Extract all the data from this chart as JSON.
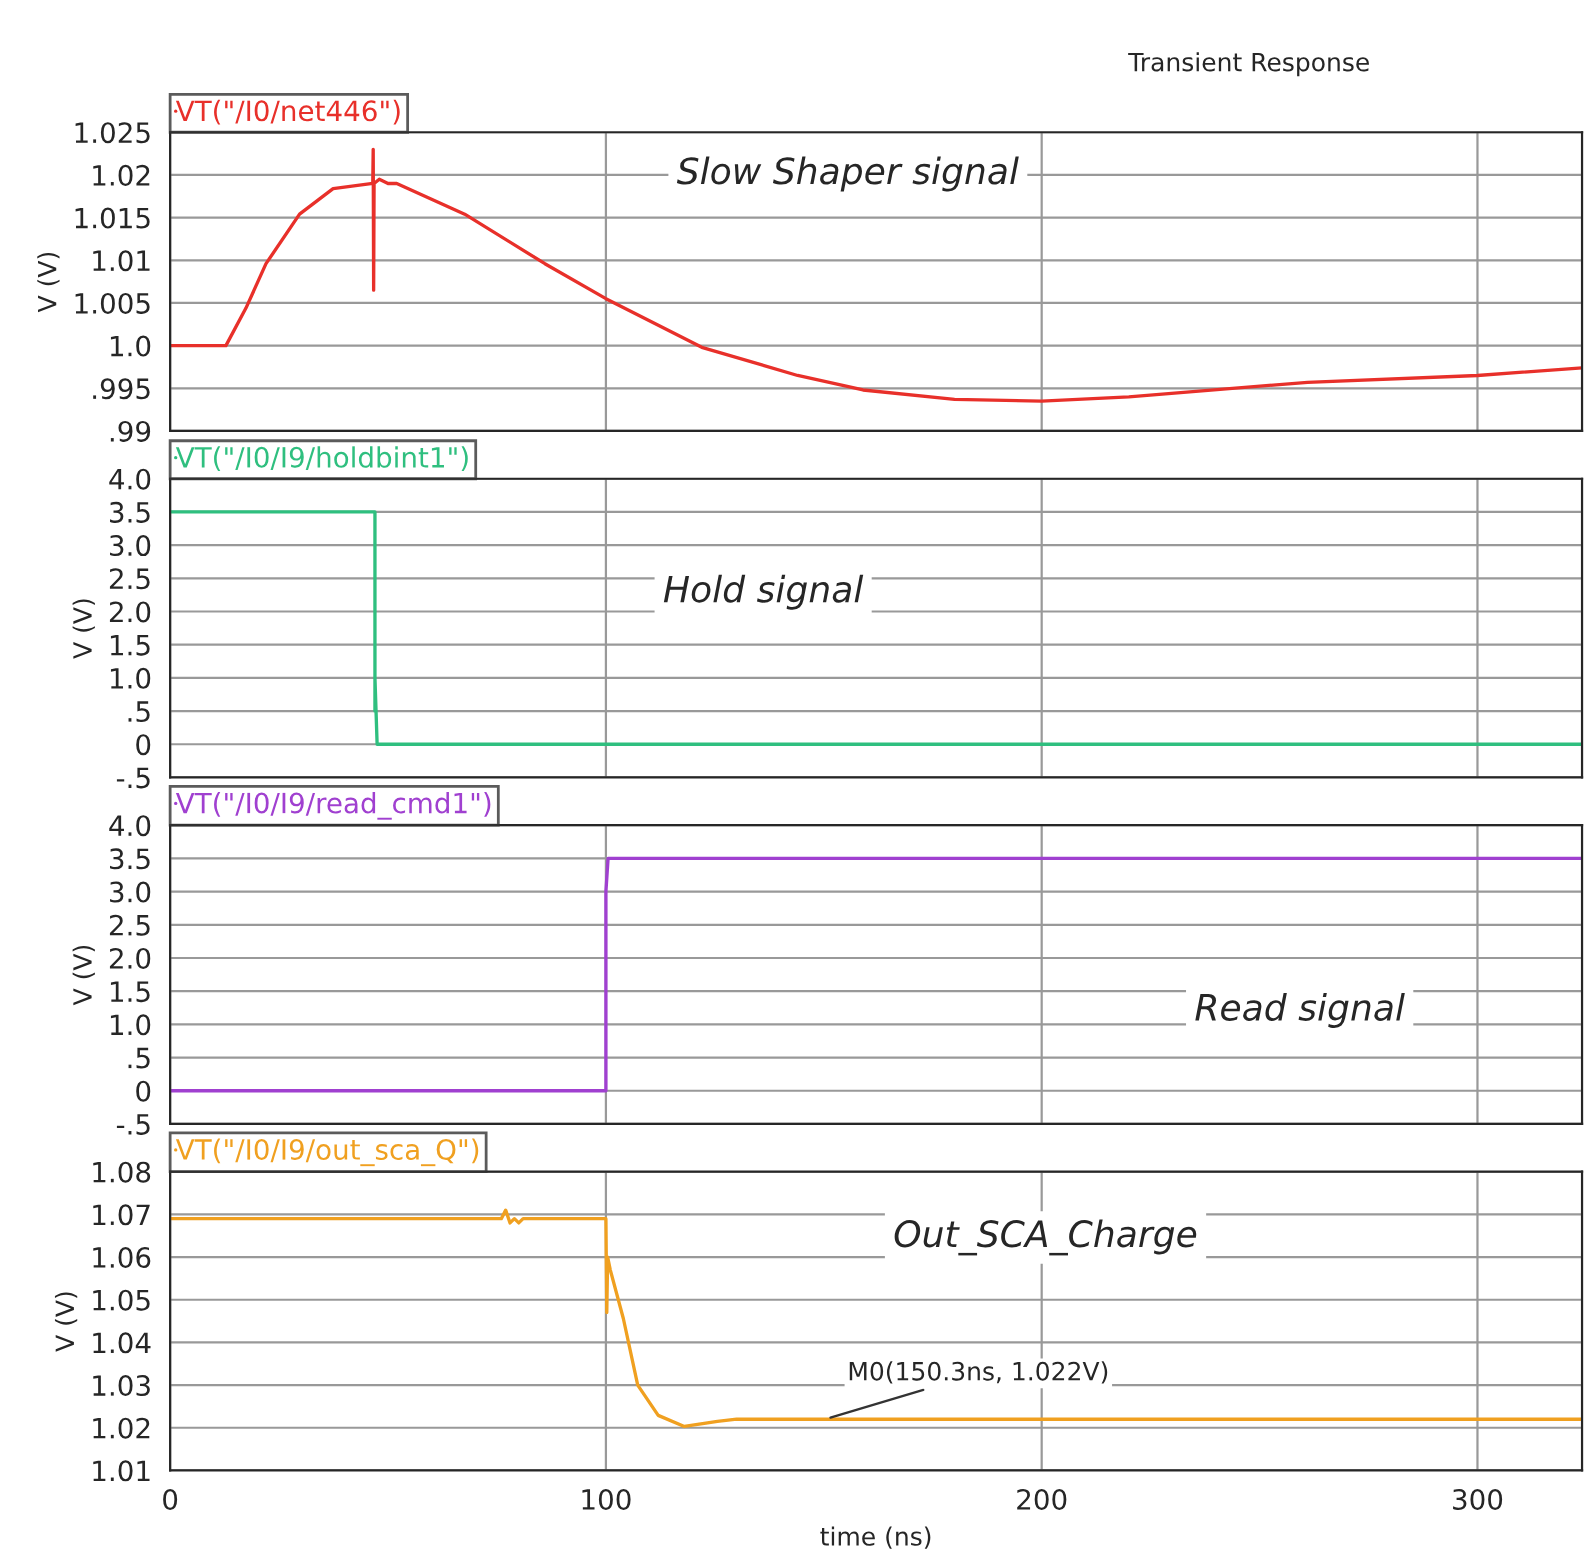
{
  "chart_data": [
    {
      "type": "line",
      "title": "Transient Response",
      "ylabel": "V (V)",
      "xlim": [
        0,
        324
      ],
      "ylim": [
        0.99,
        1.025
      ],
      "xticks": [
        0,
        100,
        200,
        300
      ],
      "yticks": [
        {
          "value": 0.99,
          "label": ".99"
        },
        {
          "value": 0.995,
          "label": ".995"
        },
        {
          "value": 1.0,
          "label": "1.0"
        },
        1.005,
        1.01,
        1.015,
        1.02,
        1.025
      ],
      "tick_labels": "y",
      "grid": true,
      "legend": "top left",
      "marker": "none",
      "line_style": "solid",
      "annotations": [
        "Slow Shaper signal"
      ],
      "series": [
        {
          "name": "VT(\"/I0/net446\")",
          "color": "#e8302a",
          "x": [
            0,
            12.8,
            17.4,
            22,
            29.7,
            37.4,
            46.5,
            46.6,
            46.7,
            46.8,
            48,
            50,
            52,
            67.6,
            86,
            100,
            122,
            144,
            159,
            180,
            200,
            220,
            261,
            300,
            324
          ],
          "values": [
            1.0,
            1.0,
            1.0044,
            1.0096,
            1.0154,
            1.0184,
            1.019,
            1.023,
            1.0065,
            1.019,
            1.0195,
            1.019,
            1.019,
            1.0154,
            1.0096,
            1.0055,
            0.9998,
            0.9965,
            0.9948,
            0.9937,
            0.9935,
            0.994,
            0.9957,
            0.9965,
            0.9974
          ]
        }
      ]
    },
    {
      "type": "line",
      "ylabel": "V (V)",
      "xlim": [
        0,
        324
      ],
      "ylim": [
        -0.5,
        4.0
      ],
      "xticks": [
        0,
        100,
        200,
        300
      ],
      "yticks": [
        {
          "value": -0.5,
          "label": "-.5"
        },
        0,
        {
          "value": 0.5,
          "label": ".5"
        },
        {
          "value": 1.0,
          "label": "1.0"
        },
        1.5,
        {
          "value": 2.0,
          "label": "2.0"
        },
        2.5,
        {
          "value": 3.0,
          "label": "3.0"
        },
        3.5,
        {
          "value": 4.0,
          "label": "4.0"
        }
      ],
      "tick_labels": "y",
      "grid": true,
      "legend": "top left",
      "marker": "none",
      "line_style": "solid",
      "annotations": [
        "Hold signal"
      ],
      "series": [
        {
          "name": "VT(\"/I0/I9/holdbint1\")",
          "color": "#2fbf7f",
          "x": [
            0,
            47,
            47,
            47,
            47,
            47.5,
            324
          ],
          "values": [
            3.5,
            3.5,
            1.3,
            0.5,
            1.0,
            0,
            0
          ]
        }
      ]
    },
    {
      "type": "line",
      "ylabel": "V (V)",
      "xlim": [
        0,
        324
      ],
      "ylim": [
        -0.5,
        4.0
      ],
      "xticks": [
        0,
        100,
        200,
        300
      ],
      "yticks": [
        {
          "value": -0.5,
          "label": "-.5"
        },
        0,
        {
          "value": 0.5,
          "label": ".5"
        },
        {
          "value": 1.0,
          "label": "1.0"
        },
        1.5,
        {
          "value": 2.0,
          "label": "2.0"
        },
        2.5,
        {
          "value": 3.0,
          "label": "3.0"
        },
        3.5,
        {
          "value": 4.0,
          "label": "4.0"
        }
      ],
      "tick_labels": "y",
      "grid": true,
      "legend": "top left",
      "marker": "none",
      "line_style": "solid",
      "annotations": [
        "Read signal"
      ],
      "series": [
        {
          "name": "VT(\"/I0/I9/read_cmd1\")",
          "color": "#a040d0",
          "x": [
            0,
            100,
            100,
            100,
            100.5,
            324
          ],
          "values": [
            0,
            0,
            2.1,
            3.0,
            3.5,
            3.5
          ]
        }
      ]
    },
    {
      "type": "line",
      "xlabel": "time (ns)",
      "ylabel": "V (V)",
      "xlim": [
        0,
        324
      ],
      "ylim": [
        1.01,
        1.08
      ],
      "xticks": [
        0,
        100,
        200,
        300
      ],
      "yticks": [
        1.01,
        1.02,
        1.03,
        1.04,
        1.05,
        1.06,
        1.07,
        1.08
      ],
      "grid": true,
      "legend": "top left",
      "marker": "none",
      "line_style": "solid",
      "annotations": [
        "Out_SCA_Charge",
        {
          "text": "M0(150.3ns, 1.022V)",
          "x": 150.3,
          "y": 1.022
        }
      ],
      "series": [
        {
          "name": "VT(\"/I0/I9/out_sca_Q\")",
          "color": "#f0a020",
          "x": [
            0,
            76,
            77,
            78,
            79,
            80,
            81,
            82,
            100,
            100.2,
            100.4,
            101,
            104,
            107.3,
            112,
            118,
            125.6,
            130,
            324
          ],
          "values": [
            1.069,
            1.069,
            1.071,
            1.068,
            1.069,
            1.068,
            1.069,
            1.069,
            1.069,
            1.047,
            1.06,
            1.057,
            1.0456,
            1.03,
            1.0229,
            1.0203,
            1.0215,
            1.022,
            1.022
          ]
        }
      ]
    }
  ]
}
